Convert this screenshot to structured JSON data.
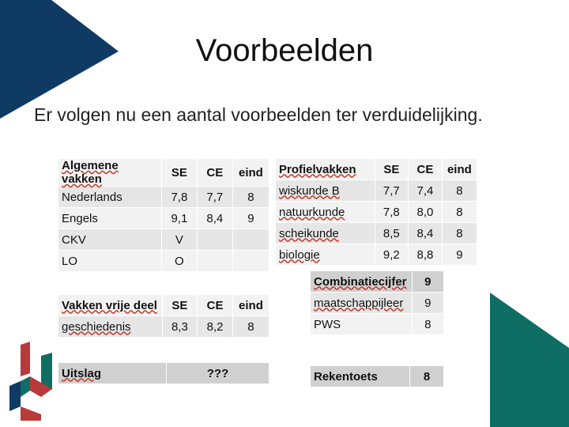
{
  "slide": {
    "title": "Voorbeelden",
    "subtitle": "Er volgen nu een aantal voorbeelden ter verduidelijking."
  },
  "colors": {
    "navy": "#0f3a63",
    "teal": "#0e6e63",
    "red": "#b83a3a"
  },
  "algemene": {
    "headers": [
      "Algemene vakken",
      "SE",
      "CE",
      "eind"
    ],
    "rows": [
      [
        "Nederlands",
        "7,8",
        "7,7",
        "8"
      ],
      [
        "Engels",
        "9,1",
        "8,4",
        "9"
      ],
      [
        "CKV",
        "V",
        "",
        ""
      ],
      [
        "LO",
        "O",
        "",
        ""
      ]
    ]
  },
  "profiel": {
    "headers": [
      "Profielvakken",
      "SE",
      "CE",
      "eind"
    ],
    "rows": [
      [
        "wiskunde B",
        "7,7",
        "7,4",
        "8"
      ],
      [
        "natuurkunde",
        "7,8",
        "8,0",
        "8"
      ],
      [
        "scheikunde",
        "8,5",
        "8,4",
        "8"
      ],
      [
        "biologie",
        "9,2",
        "8,8",
        "9"
      ]
    ]
  },
  "combinatie": {
    "header": [
      "Combinatiecijfer",
      "9"
    ],
    "rows": [
      [
        "maatschappijleer",
        "9"
      ],
      [
        "PWS",
        "8"
      ]
    ]
  },
  "vrije": {
    "headers": [
      "Vakken vrije deel",
      "SE",
      "CE",
      "eind"
    ],
    "rows": [
      [
        "geschiedenis",
        "8,3",
        "8,2",
        "8"
      ]
    ]
  },
  "uitslag": {
    "label": "Uitslag",
    "value": "???"
  },
  "rekentoets": {
    "label": "Rekentoets",
    "value": "8"
  }
}
